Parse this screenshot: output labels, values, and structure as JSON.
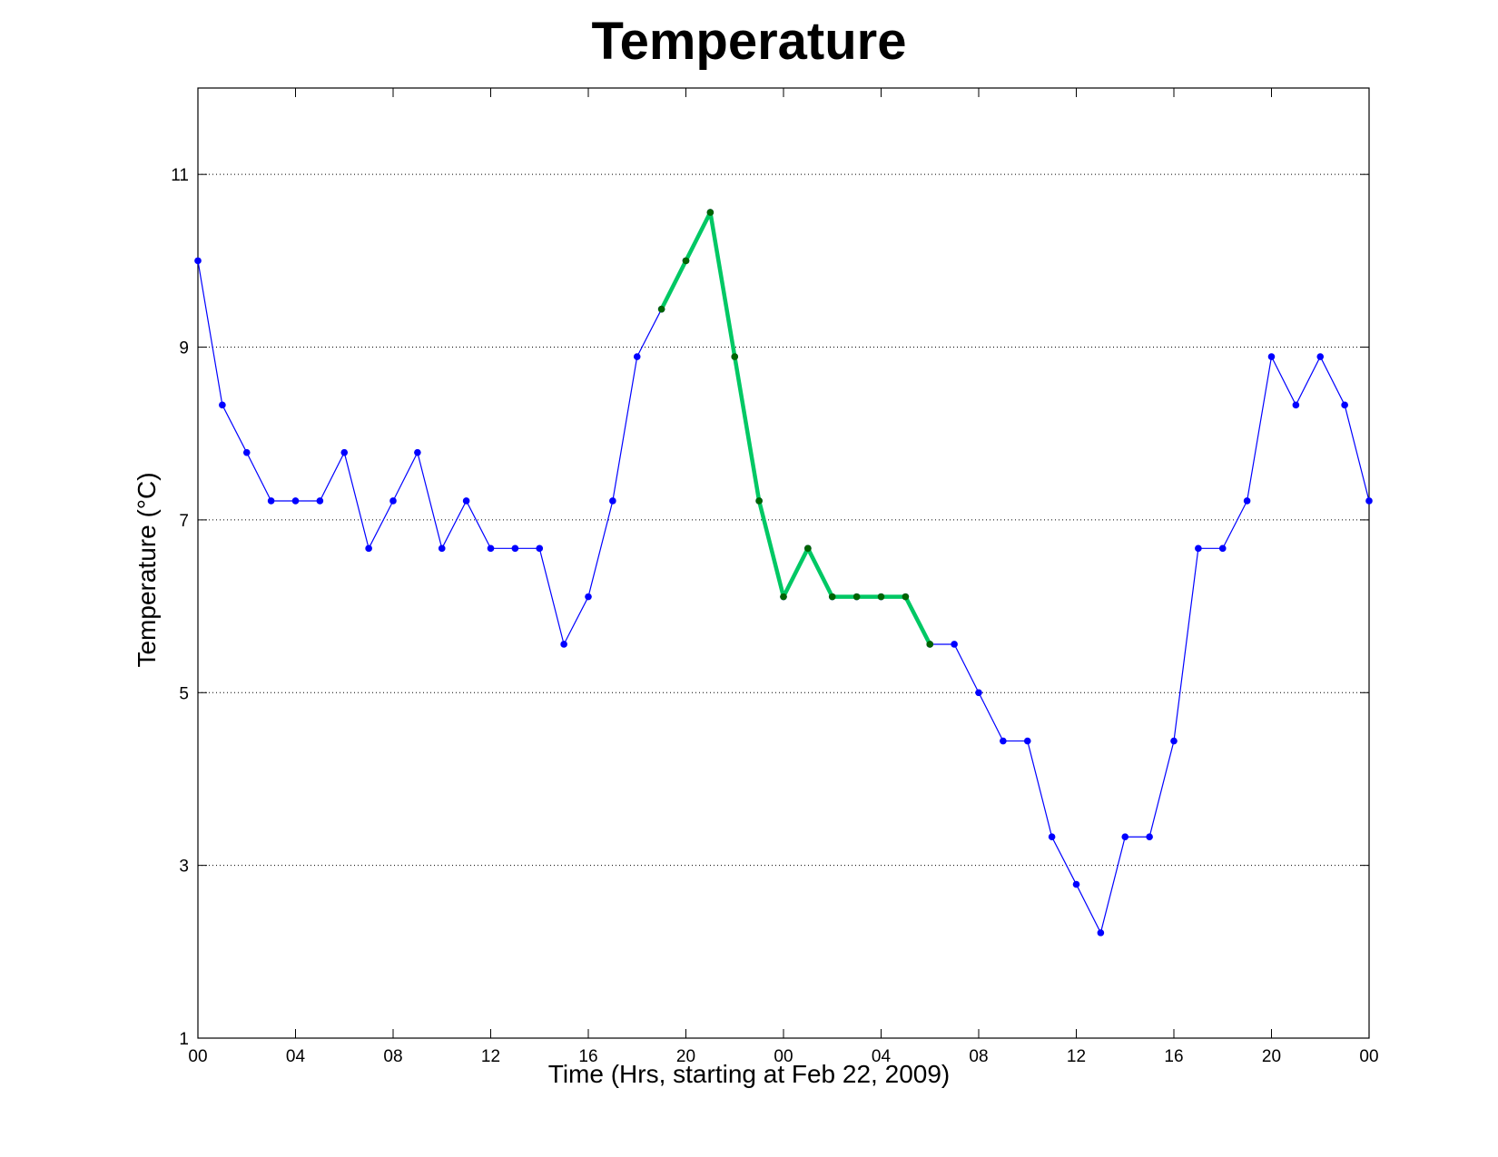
{
  "chart_data": {
    "type": "line",
    "title": "Temperature",
    "xlabel": "Time (Hrs, starting at Feb 22, 2009)",
    "ylabel": "Temperature (°C)",
    "ylim": [
      1,
      12
    ],
    "xlim": [
      "2009-02-22 00:00",
      "2009-02-24 00:00"
    ],
    "yticks": [
      1,
      3,
      5,
      7,
      9,
      11
    ],
    "xtick_labels": [
      "00",
      "04",
      "08",
      "12",
      "16",
      "20",
      "00",
      "04",
      "08",
      "12",
      "16",
      "20",
      "00"
    ],
    "grid": "horizontal dotted",
    "x_hours": [
      0,
      1,
      2,
      3,
      4,
      5,
      6,
      7,
      8,
      9,
      10,
      11,
      12,
      13,
      14,
      15,
      16,
      17,
      18,
      19,
      20,
      21,
      22,
      23,
      24,
      25,
      26,
      27,
      28,
      29,
      30,
      31,
      32,
      33,
      34,
      35,
      36,
      37,
      38,
      39,
      40,
      41,
      42,
      43,
      44,
      45,
      46,
      47,
      48
    ],
    "series": [
      {
        "color": "#0000ff",
        "values": [
          10.0,
          8.33,
          7.78,
          7.22,
          7.22,
          7.22,
          7.78,
          6.67,
          7.22,
          7.78,
          6.67,
          7.22,
          6.67,
          6.67,
          6.67,
          5.56,
          6.11,
          7.22,
          8.89,
          9.44,
          10.0,
          10.56,
          8.89,
          7.22,
          6.11,
          6.67,
          6.11,
          6.11,
          6.11,
          6.11,
          5.56,
          5.56,
          5.0,
          4.44,
          4.44,
          3.33,
          2.78,
          2.22,
          3.33,
          3.33,
          4.44,
          6.67,
          6.67,
          7.22,
          8.89,
          8.33,
          8.89,
          8.33,
          7.22
        ]
      },
      {
        "color": "#00c864",
        "marker_color": "#006400",
        "x_range_hours": [
          19,
          30
        ],
        "values": [
          9.44,
          10.0,
          10.56,
          8.89,
          7.22,
          6.11,
          6.67,
          6.11,
          6.11,
          6.11,
          6.11,
          5.56
        ]
      }
    ]
  }
}
